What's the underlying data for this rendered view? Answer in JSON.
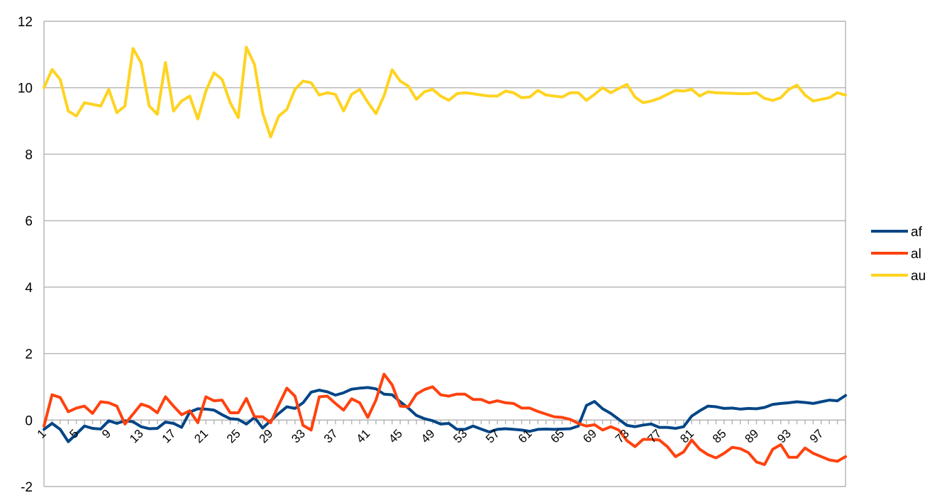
{
  "chart_data": {
    "type": "line",
    "title": "",
    "xlabel": "",
    "ylabel": "",
    "ylim": [
      -2,
      12
    ],
    "yticks": [
      -2,
      0,
      2,
      4,
      6,
      8,
      10,
      12
    ],
    "x": [
      1,
      2,
      3,
      4,
      5,
      6,
      7,
      8,
      9,
      10,
      11,
      12,
      13,
      14,
      15,
      16,
      17,
      18,
      19,
      20,
      21,
      22,
      23,
      24,
      25,
      26,
      27,
      28,
      29,
      30,
      31,
      32,
      33,
      34,
      35,
      36,
      37,
      38,
      39,
      40,
      41,
      42,
      43,
      44,
      45,
      46,
      47,
      48,
      49,
      50,
      51,
      52,
      53,
      54,
      55,
      56,
      57,
      58,
      59,
      60,
      61,
      62,
      63,
      64,
      65,
      66,
      67,
      68,
      69,
      70,
      71,
      72,
      73,
      74,
      75,
      76,
      77,
      78,
      79,
      80,
      81,
      82,
      83,
      84,
      85,
      86,
      87,
      88,
      89,
      90,
      91,
      92,
      93,
      94,
      95,
      96,
      97,
      98,
      99,
      100
    ],
    "xtick_labels": [
      "1",
      "5",
      "9",
      "13",
      "17",
      "21",
      "25",
      "29",
      "33",
      "37",
      "41",
      "45",
      "49",
      "53",
      "57",
      "61",
      "65",
      "69",
      "73",
      "77",
      "81",
      "85",
      "89",
      "93",
      "97"
    ],
    "grid": "horizontal",
    "legend_position": "right",
    "series": [
      {
        "name": "af",
        "color": "#004586",
        "values": [
          -0.28,
          -0.1,
          -0.28,
          -0.65,
          -0.42,
          -0.18,
          -0.25,
          -0.27,
          -0.02,
          -0.1,
          -0.02,
          -0.05,
          -0.2,
          -0.26,
          -0.25,
          -0.06,
          -0.1,
          -0.22,
          0.24,
          0.34,
          0.33,
          0.3,
          0.16,
          0.04,
          0.02,
          -0.12,
          0.08,
          -0.24,
          -0.02,
          0.2,
          0.4,
          0.35,
          0.52,
          0.84,
          0.9,
          0.85,
          0.75,
          0.82,
          0.93,
          0.96,
          0.98,
          0.94,
          0.78,
          0.76,
          0.55,
          0.36,
          0.14,
          0.04,
          -0.02,
          -0.12,
          -0.1,
          -0.28,
          -0.28,
          -0.18,
          -0.27,
          -0.36,
          -0.28,
          -0.26,
          -0.28,
          -0.3,
          -0.34,
          -0.28,
          -0.27,
          -0.28,
          -0.27,
          -0.26,
          -0.18,
          0.44,
          0.56,
          0.34,
          0.2,
          0.02,
          -0.16,
          -0.2,
          -0.15,
          -0.12,
          -0.22,
          -0.22,
          -0.25,
          -0.2,
          0.12,
          0.28,
          0.42,
          0.4,
          0.35,
          0.36,
          0.33,
          0.35,
          0.34,
          0.38,
          0.47,
          0.5,
          0.52,
          0.55,
          0.53,
          0.5,
          0.55,
          0.6,
          0.58,
          0.74
        ]
      },
      {
        "name": "al",
        "color": "#ff420e",
        "values": [
          -0.18,
          0.76,
          0.68,
          0.25,
          0.36,
          0.42,
          0.2,
          0.55,
          0.52,
          0.42,
          -0.12,
          0.18,
          0.48,
          0.4,
          0.22,
          0.7,
          0.42,
          0.16,
          0.28,
          -0.08,
          0.7,
          0.58,
          0.6,
          0.22,
          0.22,
          0.65,
          0.1,
          0.1,
          -0.08,
          0.46,
          0.96,
          0.72,
          -0.16,
          -0.3,
          0.7,
          0.72,
          0.5,
          0.3,
          0.64,
          0.52,
          0.08,
          0.6,
          1.38,
          1.06,
          0.42,
          0.4,
          0.78,
          0.92,
          1.0,
          0.76,
          0.72,
          0.78,
          0.78,
          0.62,
          0.62,
          0.52,
          0.58,
          0.52,
          0.5,
          0.36,
          0.36,
          0.26,
          0.18,
          0.1,
          0.08,
          0.02,
          -0.1,
          -0.18,
          -0.14,
          -0.3,
          -0.2,
          -0.3,
          -0.62,
          -0.8,
          -0.58,
          -0.58,
          -0.6,
          -0.8,
          -1.1,
          -0.96,
          -0.6,
          -0.88,
          -1.04,
          -1.14,
          -1.0,
          -0.82,
          -0.86,
          -0.98,
          -1.26,
          -1.34,
          -0.88,
          -0.74,
          -1.12,
          -1.12,
          -0.84,
          -1.0,
          -1.1,
          -1.2,
          -1.24,
          -1.1
        ]
      },
      {
        "name": "au",
        "color": "#ffd320",
        "values": [
          10.0,
          10.55,
          10.25,
          9.3,
          9.15,
          9.55,
          9.5,
          9.45,
          9.95,
          9.25,
          9.45,
          11.18,
          10.75,
          9.45,
          9.2,
          10.76,
          9.3,
          9.6,
          9.75,
          9.06,
          9.9,
          10.45,
          10.25,
          9.55,
          9.1,
          11.22,
          10.7,
          9.25,
          8.52,
          9.15,
          9.35,
          9.95,
          10.2,
          10.15,
          9.78,
          9.85,
          9.8,
          9.3,
          9.8,
          9.95,
          9.56,
          9.22,
          9.76,
          10.54,
          10.2,
          10.05,
          9.65,
          9.88,
          9.95,
          9.75,
          9.62,
          9.82,
          9.85,
          9.82,
          9.78,
          9.75,
          9.75,
          9.9,
          9.85,
          9.7,
          9.72,
          9.92,
          9.78,
          9.75,
          9.72,
          9.85,
          9.85,
          9.62,
          9.8,
          10.0,
          9.85,
          9.98,
          10.1,
          9.72,
          9.55,
          9.6,
          9.68,
          9.8,
          9.92,
          9.9,
          9.95,
          9.75,
          9.88,
          9.85,
          9.84,
          9.83,
          9.82,
          9.82,
          9.85,
          9.68,
          9.62,
          9.7,
          9.95,
          10.08,
          9.78,
          9.6,
          9.65,
          9.7,
          9.85,
          9.78
        ]
      }
    ]
  }
}
